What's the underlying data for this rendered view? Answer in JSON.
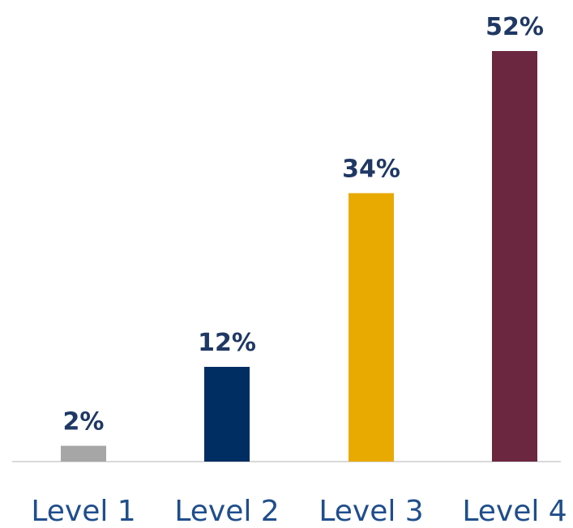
{
  "chart_data": {
    "type": "bar",
    "categories": [
      "Level 1",
      "Level 2",
      "Level 3",
      "Level 4"
    ],
    "values": [
      2,
      12,
      34,
      52
    ],
    "value_labels": [
      "2%",
      "12%",
      "34%",
      "52%"
    ],
    "colors": [
      "#a6a6a6",
      "#002d62",
      "#e8aa00",
      "#6b2740"
    ],
    "ylim": [
      0,
      52
    ],
    "grid": false,
    "title": "",
    "xlabel": "",
    "ylabel": ""
  }
}
